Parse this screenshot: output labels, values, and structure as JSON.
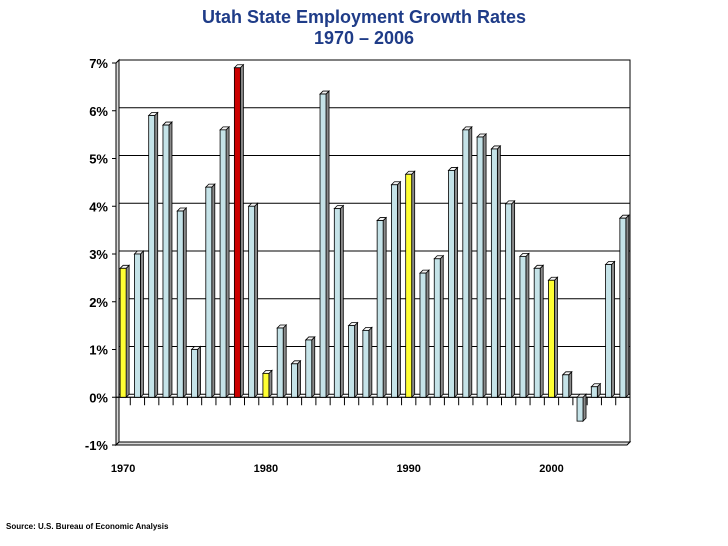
{
  "chart_data": {
    "type": "bar",
    "title": "Utah State Employment Growth Rates",
    "subtitle": "1970 – 2006",
    "xlabel": "",
    "ylabel": "",
    "ylim": [
      -1,
      7
    ],
    "yticks": [
      -1,
      0,
      1,
      2,
      3,
      4,
      5,
      6,
      7
    ],
    "ytick_labels": [
      "-1%",
      "0%",
      "1%",
      "2%",
      "3%",
      "4%",
      "5%",
      "6%",
      "7%"
    ],
    "xtick_labels": [
      {
        "year": 1970,
        "label": "1970"
      },
      {
        "year": 1980,
        "label": "1980"
      },
      {
        "year": 1990,
        "label": "1990"
      },
      {
        "year": 2000,
        "label": "2000"
      }
    ],
    "grid": true,
    "years": [
      1970,
      1971,
      1972,
      1973,
      1974,
      1975,
      1976,
      1977,
      1978,
      1979,
      1980,
      1981,
      1982,
      1983,
      1984,
      1985,
      1986,
      1987,
      1988,
      1989,
      1990,
      1991,
      1992,
      1993,
      1994,
      1995,
      1996,
      1997,
      1998,
      1999,
      2000,
      2001,
      2002,
      2003,
      2004,
      2005
    ],
    "values": [
      2.7,
      3.0,
      5.9,
      5.7,
      3.9,
      1.0,
      4.4,
      5.6,
      6.9,
      4.0,
      0.5,
      1.45,
      0.7,
      1.2,
      6.35,
      3.95,
      1.5,
      1.4,
      3.7,
      4.45,
      4.67,
      2.6,
      2.9,
      4.75,
      5.6,
      5.45,
      5.2,
      4.05,
      2.95,
      2.7,
      2.45,
      0.47,
      -0.5,
      0.22,
      2.78,
      3.75
    ],
    "highlight": {
      "1970": "#ffff33",
      "1978": "#cc0000",
      "1980": "#ffff33",
      "1990": "#ffff33",
      "2000": "#ffff33"
    },
    "colors": {
      "default_bar": "#c5e3e8",
      "title": "#1f3c88"
    }
  },
  "source": "Source: U.S. Bureau of Economic Analysis"
}
